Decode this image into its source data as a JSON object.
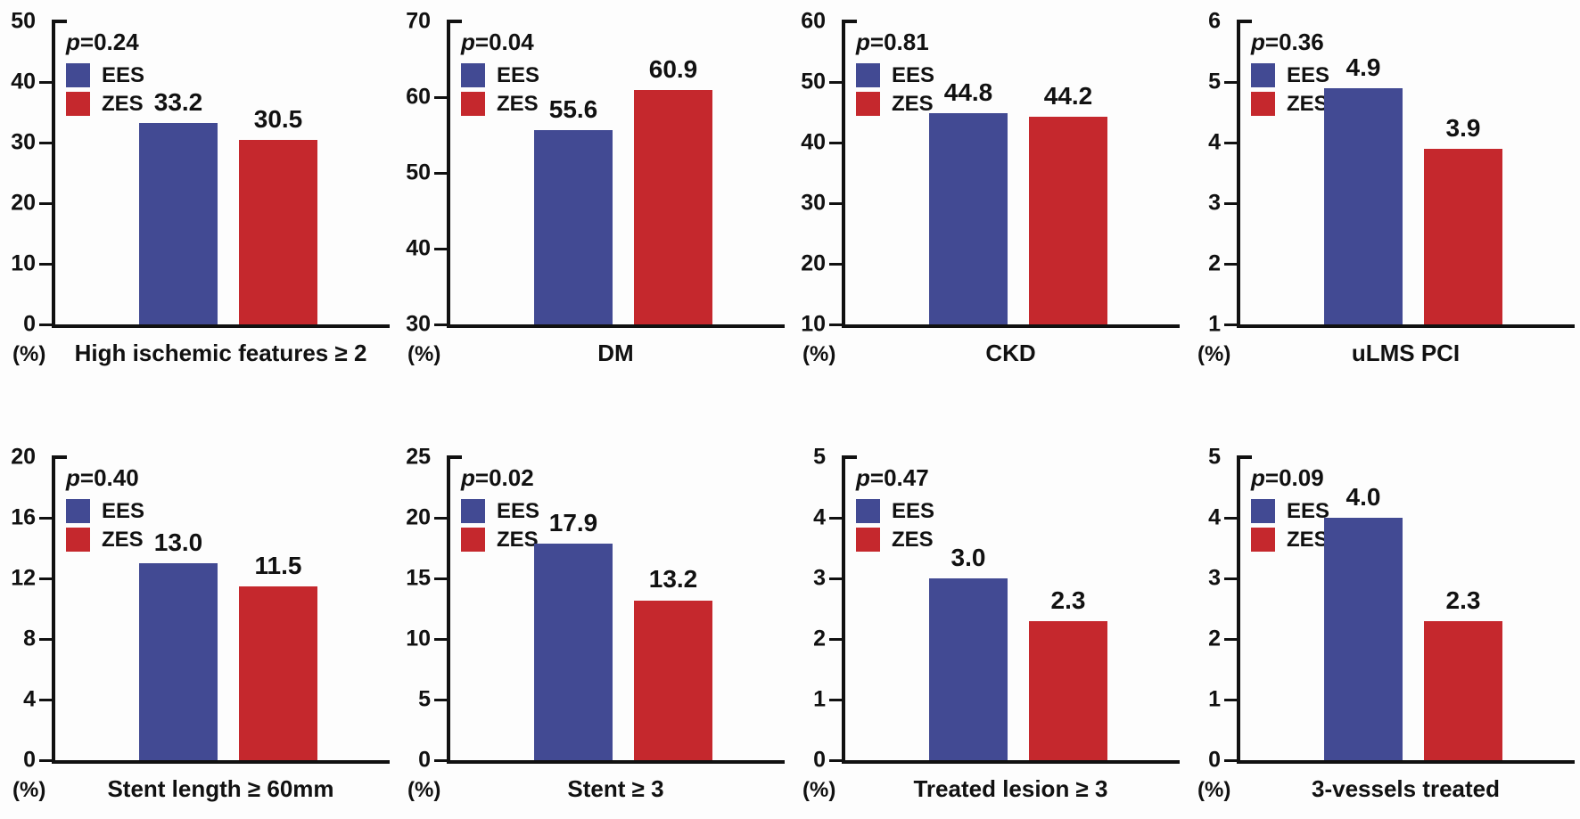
{
  "figure": {
    "ylabel": "(%)",
    "legend": {
      "series1": "EES",
      "series2": "ZES",
      "position": "top-left"
    },
    "colors": {
      "ees": "#424a93",
      "zes": "#c5282d",
      "axis": "#111111",
      "text": "#111111",
      "background": "#fdfdfd"
    }
  },
  "chart_data": [
    {
      "type": "bar",
      "title": "High ischemic features ≥ 2",
      "p_label": "p=0.24",
      "categories": [
        "EES",
        "ZES"
      ],
      "values": [
        33.2,
        30.5
      ],
      "ylim": [
        0,
        50
      ],
      "yticks": [
        0,
        10,
        20,
        30,
        40,
        50
      ],
      "ylabel": "(%)",
      "grid": false,
      "legend_position": "top-left"
    },
    {
      "type": "bar",
      "title": "DM",
      "p_label": "p=0.04",
      "categories": [
        "EES",
        "ZES"
      ],
      "values": [
        55.6,
        60.9
      ],
      "ylim": [
        30,
        70
      ],
      "yticks": [
        30,
        40,
        50,
        60,
        70
      ],
      "ylabel": "(%)",
      "grid": false,
      "legend_position": "top-left"
    },
    {
      "type": "bar",
      "title": "CKD",
      "p_label": "p=0.81",
      "categories": [
        "EES",
        "ZES"
      ],
      "values": [
        44.8,
        44.2
      ],
      "ylim": [
        10,
        60
      ],
      "yticks": [
        10,
        20,
        30,
        40,
        50,
        60
      ],
      "ylabel": "(%)",
      "grid": false,
      "legend_position": "top-left"
    },
    {
      "type": "bar",
      "title": "uLMS PCI",
      "p_label": "p=0.36",
      "categories": [
        "EES",
        "ZES"
      ],
      "values": [
        4.9,
        3.9
      ],
      "ylim": [
        1,
        6
      ],
      "yticks": [
        1,
        2,
        3,
        4,
        5,
        6
      ],
      "ylabel": "(%)",
      "grid": false,
      "legend_position": "top-left"
    },
    {
      "type": "bar",
      "title": "Stent length ≥ 60mm",
      "p_label": "p=0.40",
      "categories": [
        "EES",
        "ZES"
      ],
      "values": [
        13.0,
        11.5
      ],
      "ylim": [
        0,
        20
      ],
      "yticks": [
        0,
        4,
        8,
        12,
        16,
        20
      ],
      "ylabel": "(%)",
      "grid": false,
      "legend_position": "top-left"
    },
    {
      "type": "bar",
      "title": "Stent ≥ 3",
      "p_label": "p=0.02",
      "categories": [
        "EES",
        "ZES"
      ],
      "values": [
        17.9,
        13.2
      ],
      "ylim": [
        0,
        25
      ],
      "yticks": [
        0,
        5,
        10,
        15,
        20,
        25
      ],
      "ylabel": "(%)",
      "grid": false,
      "legend_position": "top-left"
    },
    {
      "type": "bar",
      "title": "Treated lesion ≥ 3",
      "p_label": "p=0.47",
      "categories": [
        "EES",
        "ZES"
      ],
      "values": [
        3.0,
        2.3
      ],
      "ylim": [
        0,
        5
      ],
      "yticks": [
        0,
        1,
        2,
        3,
        4,
        5
      ],
      "ylabel": "(%)",
      "grid": false,
      "legend_position": "top-left"
    },
    {
      "type": "bar",
      "title": "3-vessels treated",
      "p_label": "p=0.09",
      "categories": [
        "EES",
        "ZES"
      ],
      "values": [
        4.0,
        2.3
      ],
      "ylim": [
        0,
        5
      ],
      "yticks": [
        0,
        1,
        2,
        3,
        4,
        5
      ],
      "ylabel": "(%)",
      "grid": false,
      "legend_position": "top-left"
    }
  ]
}
